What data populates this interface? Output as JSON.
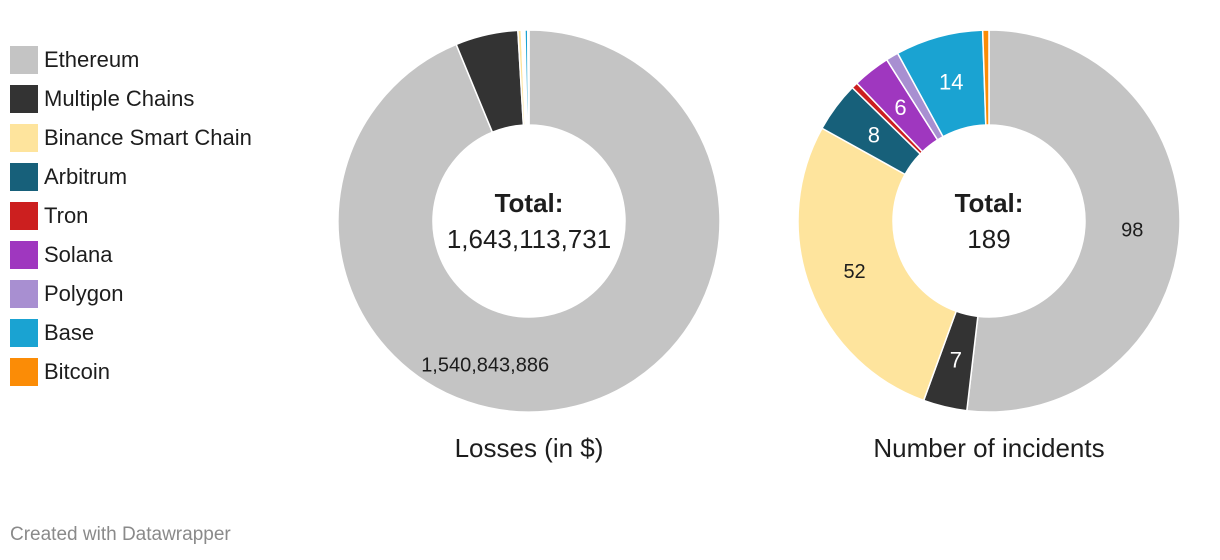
{
  "legend": {
    "items": [
      {
        "label": "Ethereum",
        "color": "#c4c4c4"
      },
      {
        "label": "Multiple Chains",
        "color": "#333333"
      },
      {
        "label": "Binance Smart Chain",
        "color": "#fee49d"
      },
      {
        "label": "Arbitrum",
        "color": "#17607a"
      },
      {
        "label": "Tron",
        "color": "#cc1f1f"
      },
      {
        "label": "Solana",
        "color": "#9f37bf"
      },
      {
        "label": "Polygon",
        "color": "#a88fd1"
      },
      {
        "label": "Base",
        "color": "#1aa3d2"
      },
      {
        "label": "Bitcoin",
        "color": "#fb8c06"
      }
    ]
  },
  "chart_data": [
    {
      "type": "pie",
      "subtype": "donut",
      "title": "Losses (in $)",
      "center_label": "Total:",
      "center_value": "1,643,113,731",
      "categories": [
        "Ethereum",
        "Multiple Chains",
        "Binance Smart Chain",
        "Arbitrum",
        "Tron",
        "Solana",
        "Polygon",
        "Base",
        "Bitcoin"
      ],
      "values": [
        1540843886,
        87000000,
        4800000,
        1900000,
        1000000,
        1300000,
        700000,
        3900000,
        1669845
      ],
      "data_labels": [
        "1,540,843,886",
        "",
        "",
        "",
        "",
        "",
        "",
        "",
        ""
      ]
    },
    {
      "type": "pie",
      "subtype": "donut",
      "title": "Number of incidents",
      "center_label": "Total:",
      "center_value": "189",
      "categories": [
        "Ethereum",
        "Multiple Chains",
        "Binance Smart Chain",
        "Arbitrum",
        "Tron",
        "Solana",
        "Polygon",
        "Base",
        "Bitcoin"
      ],
      "values": [
        98,
        7,
        52,
        8,
        1,
        6,
        2,
        14,
        1
      ],
      "data_labels": [
        "98",
        "7",
        "52",
        "8",
        "",
        "6",
        "",
        "14",
        ""
      ]
    }
  ],
  "footer": {
    "credit": "Created with Datawrapper"
  }
}
